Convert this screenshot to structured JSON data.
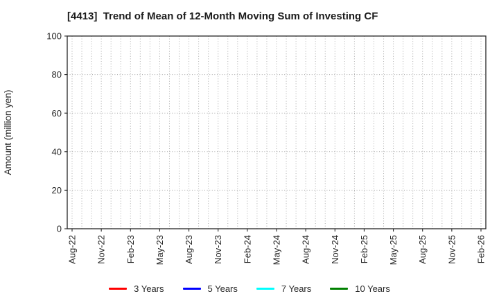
{
  "figure": {
    "title": "[4413]  Trend of Mean of 12-Month Moving Sum of Investing CF"
  },
  "chart_data": {
    "type": "line",
    "title": "[4413]  Trend of Mean of 12-Month Moving Sum of Investing CF",
    "xlabel": "",
    "ylabel": "Amount (million yen)",
    "ylim": [
      0,
      100
    ],
    "yticks": [
      0,
      20,
      40,
      60,
      80,
      100
    ],
    "x_tick_labels": [
      "Aug-22",
      "Nov-22",
      "Feb-23",
      "May-23",
      "Aug-23",
      "Nov-23",
      "Feb-24",
      "May-24",
      "Aug-24",
      "Nov-24",
      "Feb-25",
      "May-25",
      "Aug-25",
      "Nov-25",
      "Feb-26"
    ],
    "months_per_label_interval": 3,
    "grid": "dotted",
    "grid_on": true,
    "legend_position": "bottom",
    "series": [
      {
        "name": "3 Years",
        "color": "#ff0000",
        "values": []
      },
      {
        "name": "5 Years",
        "color": "#0000ff",
        "values": []
      },
      {
        "name": "7 Years",
        "color": "#00ffff",
        "values": []
      },
      {
        "name": "10 Years",
        "color": "#008000",
        "values": []
      }
    ]
  },
  "colors": {
    "axis": "#262626",
    "grid": "#aaaaaa",
    "text": "#262626",
    "background": "#ffffff"
  }
}
